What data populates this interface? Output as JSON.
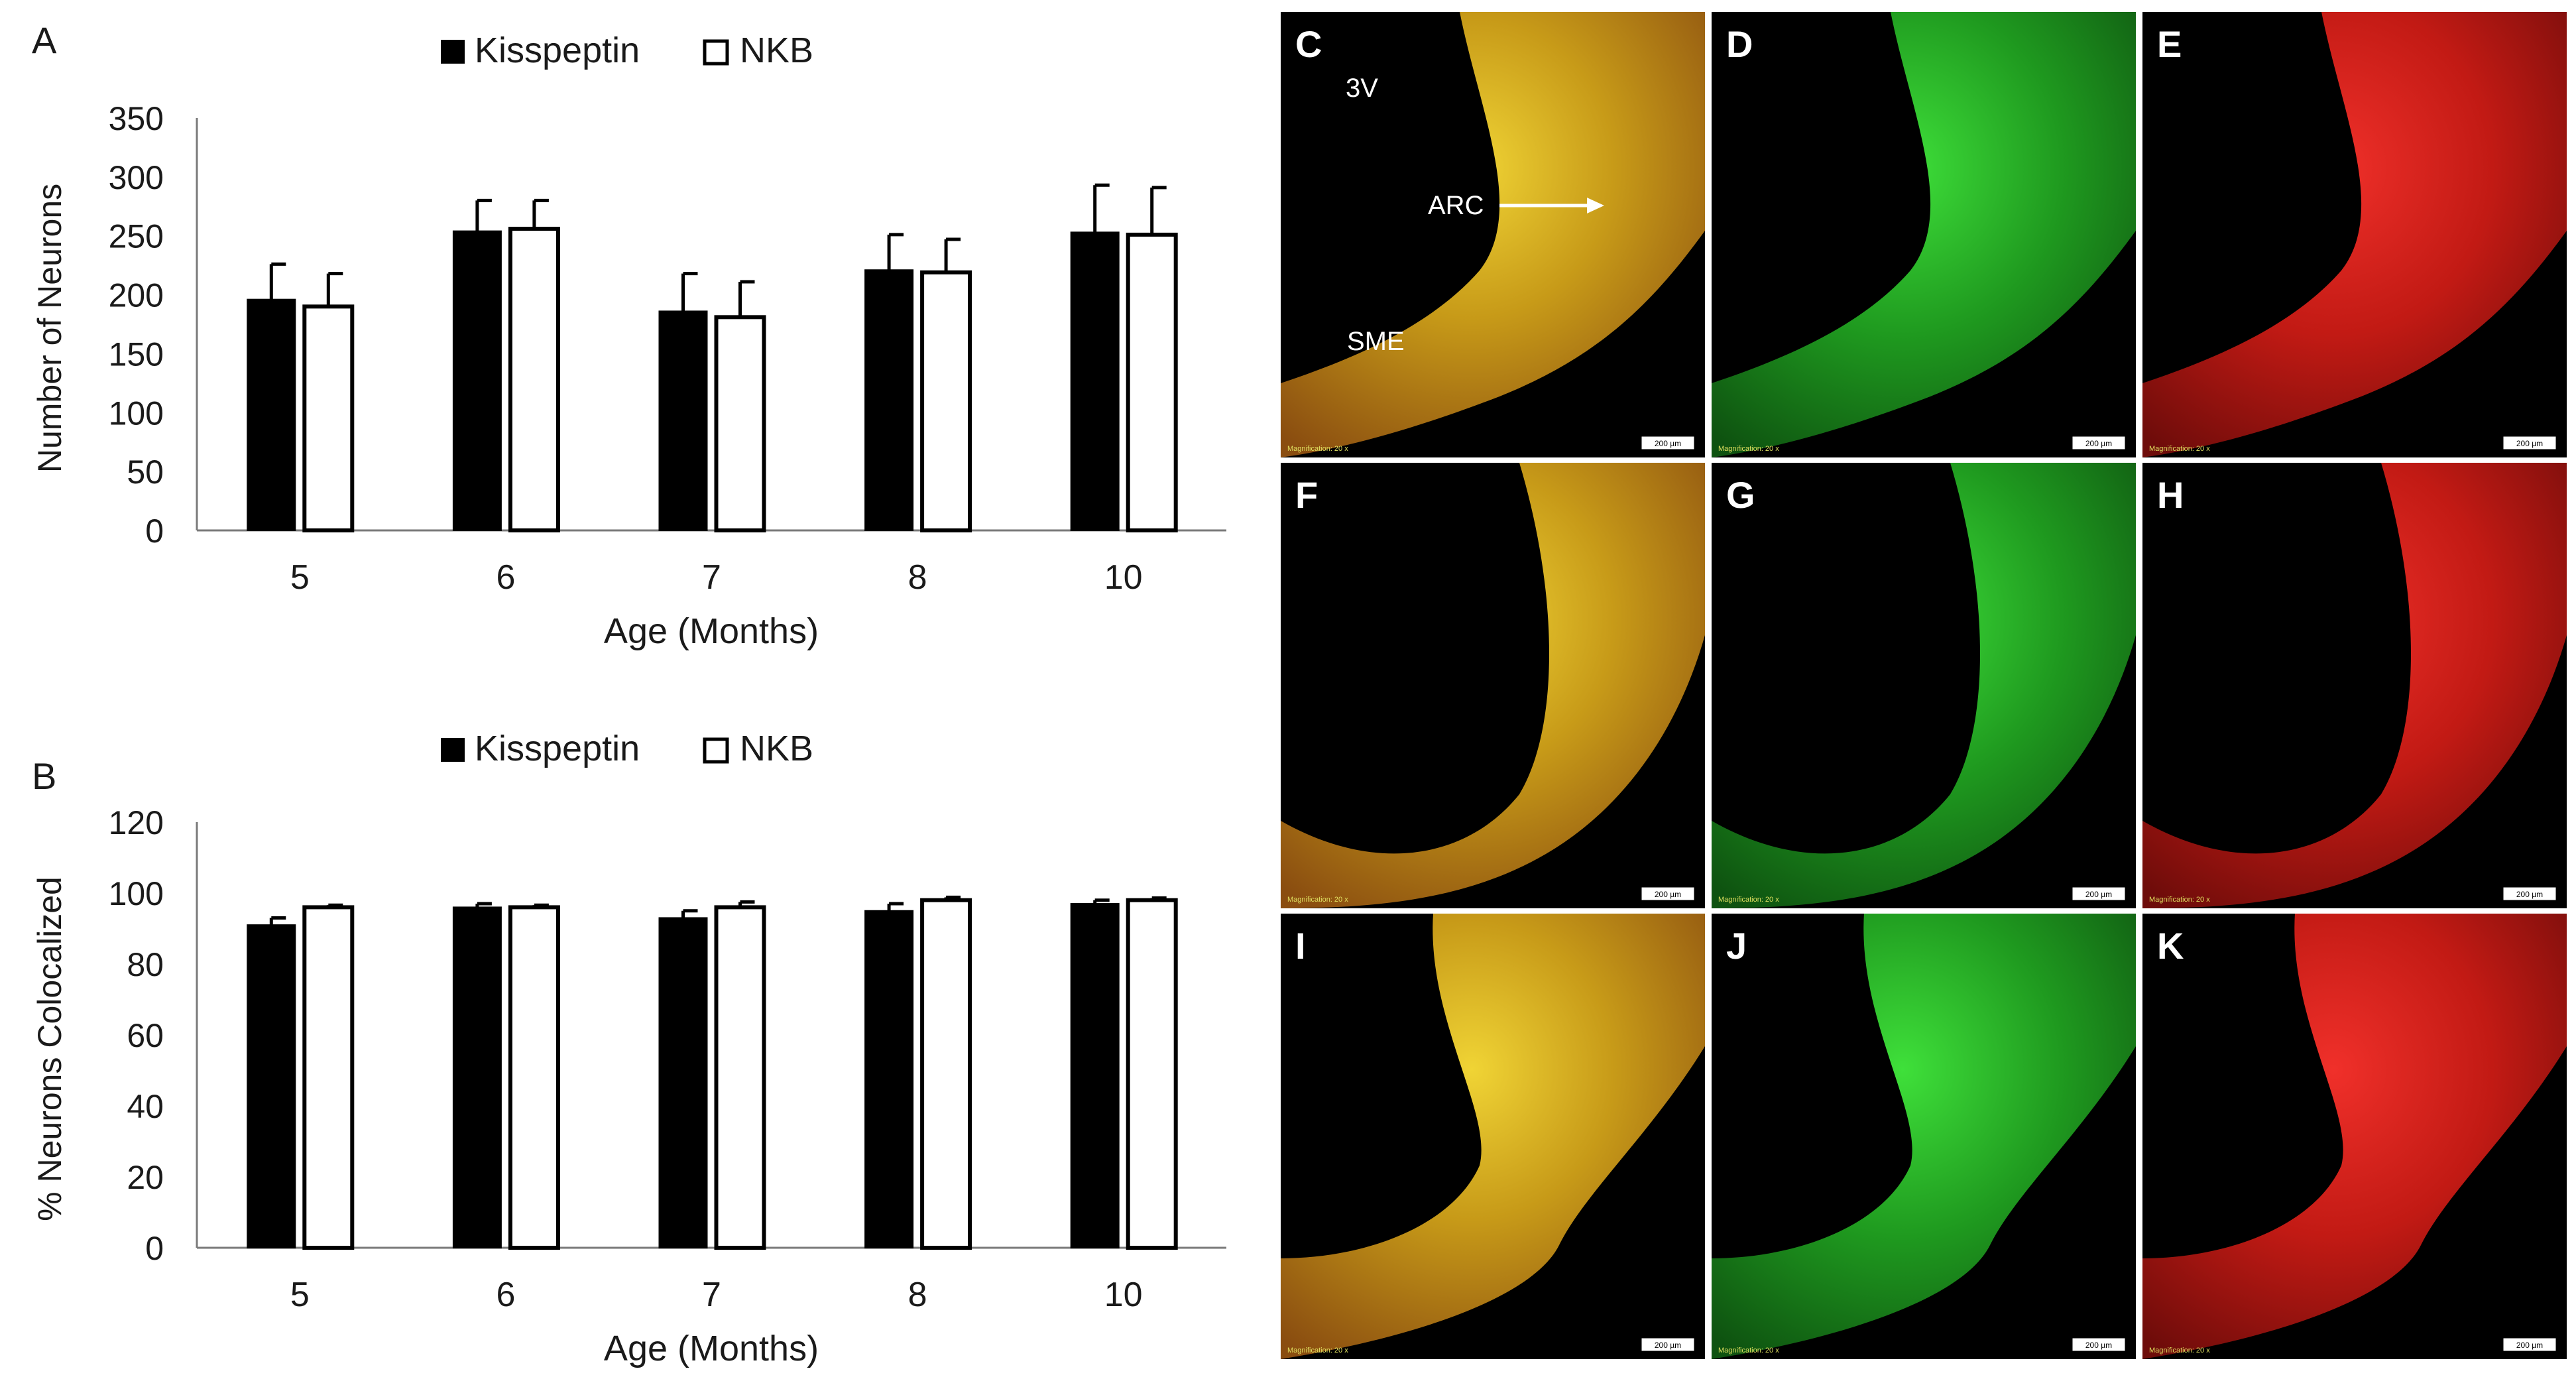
{
  "colors": {
    "kisspeptin": "#000000",
    "nkb": "#ffffff",
    "merge": "#c9a21a",
    "green": "#1f9a1f",
    "red": "#c21a14",
    "background": "#000000"
  },
  "chart_data": [
    {
      "type": "bar",
      "panel_label": "A",
      "categories": [
        "5",
        "6",
        "7",
        "8",
        "10"
      ],
      "series": [
        {
          "name": "Kisspeptin",
          "values": [
            196,
            254,
            186,
            221,
            253
          ],
          "errors": [
            30,
            26,
            32,
            30,
            40
          ]
        },
        {
          "name": "NKB",
          "values": [
            190,
            256,
            181,
            219,
            251
          ],
          "errors": [
            28,
            24,
            30,
            28,
            40
          ]
        }
      ],
      "xlabel": "Age (Months)",
      "ylabel": "Number of Neurons",
      "ylim": [
        0,
        350
      ],
      "yticks": [
        "0",
        "50",
        "100",
        "150",
        "200",
        "250",
        "300",
        "350"
      ],
      "legend_position": "top-center",
      "grid": false
    },
    {
      "type": "bar",
      "panel_label": "B",
      "categories": [
        "5",
        "6",
        "7",
        "8",
        "10"
      ],
      "series": [
        {
          "name": "Kisspeptin",
          "values": [
            91,
            96,
            93,
            95,
            97
          ],
          "errors": [
            2,
            1,
            2,
            2,
            1
          ]
        },
        {
          "name": "NKB",
          "values": [
            96,
            96,
            96,
            98,
            98
          ],
          "errors": [
            0.6,
            0.6,
            1.5,
            0.8,
            0.6
          ]
        }
      ],
      "xlabel": "Age (Months)",
      "ylabel": "% Neurons Colocalized",
      "ylim": [
        0,
        120
      ],
      "yticks": [
        "0",
        "20",
        "40",
        "60",
        "80",
        "100",
        "120"
      ],
      "legend_position": "top-center",
      "grid": false
    }
  ],
  "micrographs": {
    "panels": [
      {
        "label": "C",
        "channel": "merge",
        "annotations": [
          "3V",
          "ARC",
          "SME"
        ],
        "footer": "Magnification: 20 x",
        "scale_bar": "200 µm"
      },
      {
        "label": "D",
        "channel": "green",
        "annotations": [],
        "footer": "Magnification: 20 x",
        "scale_bar": "200 µm"
      },
      {
        "label": "E",
        "channel": "red",
        "annotations": [],
        "footer": "Magnification: 20 x",
        "scale_bar": "200 µm"
      },
      {
        "label": "F",
        "channel": "merge",
        "annotations": [],
        "footer": "Magnification: 20 x",
        "scale_bar": "200 µm"
      },
      {
        "label": "G",
        "channel": "green",
        "annotations": [],
        "footer": "Magnification: 20 x",
        "scale_bar": "200 µm"
      },
      {
        "label": "H",
        "channel": "red",
        "annotations": [],
        "footer": "Magnification: 20 x",
        "scale_bar": "200 µm"
      },
      {
        "label": "I",
        "channel": "merge",
        "annotations": [],
        "footer": "Magnification: 20 x",
        "scale_bar": "200 µm"
      },
      {
        "label": "J",
        "channel": "green",
        "annotations": [],
        "footer": "Magnification: 20 x",
        "scale_bar": "200 µm"
      },
      {
        "label": "K",
        "channel": "red",
        "annotations": [],
        "footer": "Magnification: 20 x",
        "scale_bar": "200 µm"
      }
    ]
  }
}
